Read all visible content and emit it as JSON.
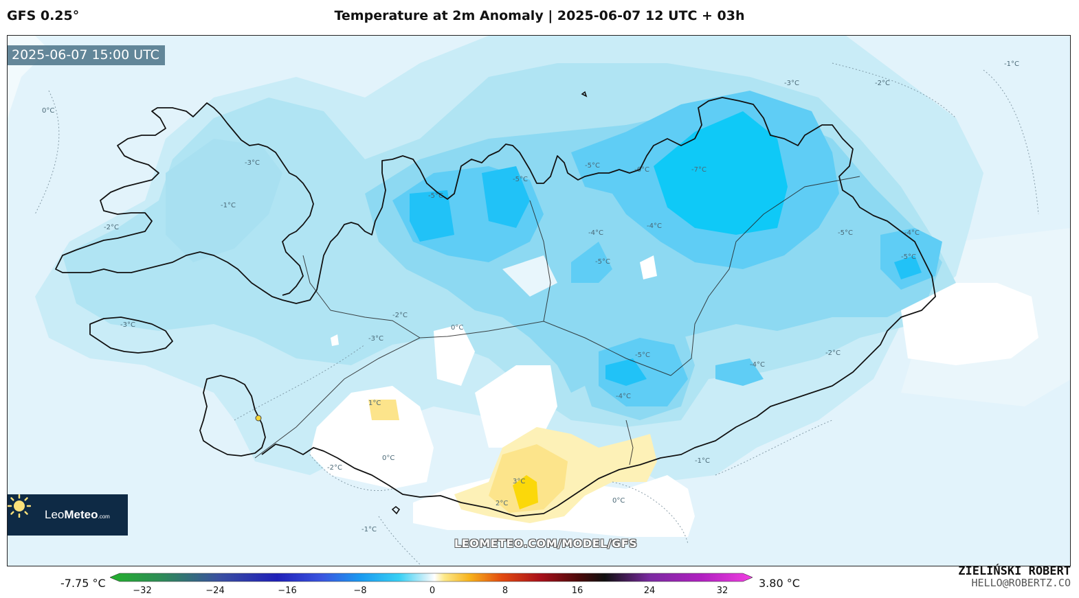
{
  "header": {
    "model": "GFS 0.25°",
    "title": "Temperature at 2m Anomaly | 2025-06-07 12 UTC + 03h"
  },
  "map": {
    "valid_time": "2025-06-07 15:00 UTC",
    "watermark": "LEOMETEO.COM/MODEL/GFS",
    "contour_labels": [
      "0°C",
      "-1°C",
      "-2°C",
      "-3°C",
      "-4°C",
      "-5°C",
      "-6°C",
      "-7°C",
      "1°C",
      "2°C",
      "3°C"
    ]
  },
  "logo": {
    "name_light": "Leo",
    "name_bold": "Meteo",
    "suffix": ".com"
  },
  "colorbar": {
    "min_label": "-7.75 °C",
    "max_label": "3.80 °C",
    "ticks": [
      "−32",
      "−24",
      "−16",
      "−8",
      "0",
      "8",
      "16",
      "24",
      "32"
    ]
  },
  "author": {
    "name": "ZIELIŃSKI ROBERT",
    "email": "HELLO@ROBERTZ.CO"
  },
  "colors": {
    "anomaly_0_to_-1": "#e2f3fb",
    "anomaly_-1_to_-2": "#c9ecf7",
    "anomaly_-2_to_-3": "#b0e4f3",
    "anomaly_-3_to_-4": "#8dd9f2",
    "anomaly_-4_to_-5": "#5fcdf5",
    "anomaly_-5_to_-7": "#21c2f7",
    "anomaly_-7_plus": "#0fc9f7",
    "anomaly_near_zero": "#ffffff",
    "anomaly_1_to_2": "#fdf1b7",
    "anomaly_2_to_3": "#fce48b",
    "anomaly_3_plus": "#fbd80a"
  }
}
